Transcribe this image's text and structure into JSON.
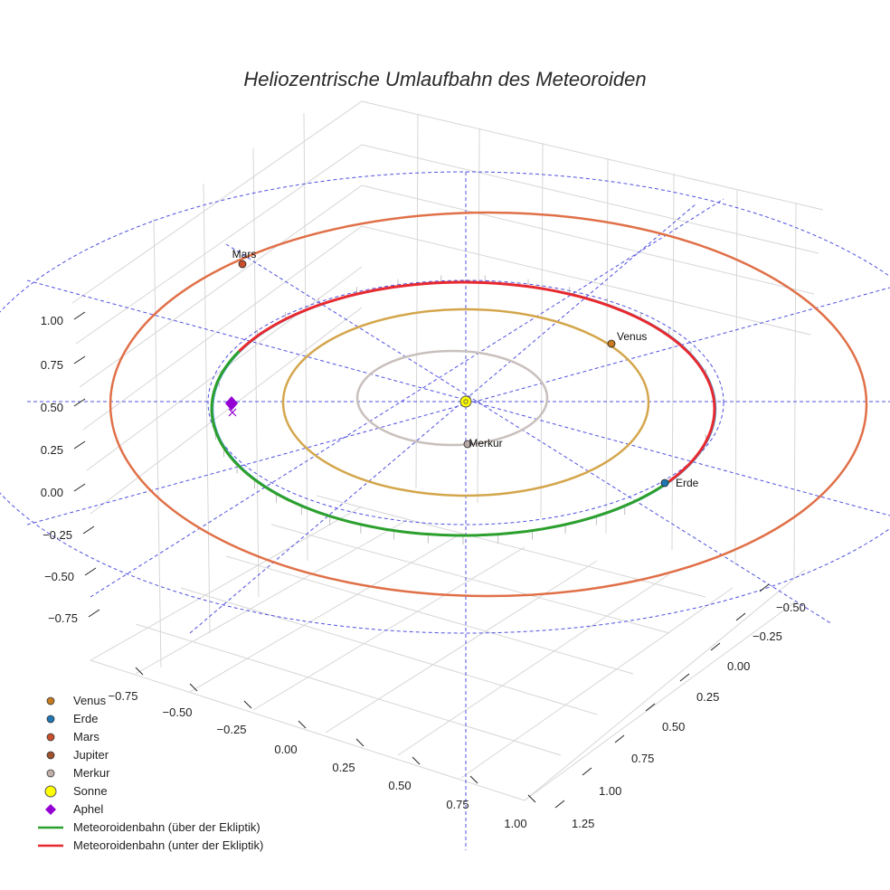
{
  "chart_data": {
    "type": "scatter3d",
    "title": "Heliozentrische Umlaufbahn des Meteoroiden",
    "axes": {
      "x_ticks": [
        "−0.75",
        "−0.50",
        "−0.25",
        "0.00",
        "0.25",
        "0.50",
        "0.75",
        "1.00"
      ],
      "y_ticks": [
        "−0.50",
        "−0.25",
        "0.00",
        "0.25",
        "0.50",
        "0.75",
        "1.00",
        "1.25"
      ],
      "z_ticks": [
        "1.00",
        "0.75",
        "0.50",
        "0.25",
        "0.00",
        "−0.25",
        "−0.50",
        "−0.75"
      ]
    },
    "bodies": [
      {
        "key": "venus",
        "label": "Venus",
        "color": "#c77b20"
      },
      {
        "key": "earth",
        "label": "Erde",
        "color": "#1f77b4"
      },
      {
        "key": "mars",
        "label": "Mars",
        "color": "#c9502c"
      },
      {
        "key": "mercury",
        "label": "Merkur",
        "color": "#b8aaa6"
      }
    ],
    "orbits": [
      {
        "name": "Merkur",
        "color": "#c9c0bd"
      },
      {
        "name": "Venus",
        "color": "#d4a64c"
      },
      {
        "name": "Erde",
        "color": "#4a9fd4"
      },
      {
        "name": "Mars",
        "color": "#e07048"
      }
    ],
    "legend": [
      {
        "label": "Venus",
        "color": "#c77b20",
        "marker": "circle"
      },
      {
        "label": "Erde",
        "color": "#1f77b4",
        "marker": "circle"
      },
      {
        "label": "Mars",
        "color": "#c9502c",
        "marker": "circle"
      },
      {
        "label": "Jupiter",
        "color": "#a0522d",
        "marker": "circle"
      },
      {
        "label": "Merkur",
        "color": "#c4b0aa",
        "marker": "circle"
      },
      {
        "label": "Sonne",
        "color": "#ffff00",
        "marker": "sun"
      },
      {
        "label": "Aphel",
        "color": "#9400d3",
        "marker": "diamond"
      },
      {
        "label": "Meteoroidenbahn (über der Ekliptik)",
        "color": "#2ca02c",
        "marker": "line"
      },
      {
        "label": "Meteoroidenbahn (unter der Ekliptik)",
        "color": "#e8292f",
        "marker": "line"
      }
    ],
    "colors": {
      "above_ecliptic": "#2ca02c",
      "below_ecliptic": "#e8292f",
      "ecliptic_guides": "#5050e0",
      "aphel": "#9400d3",
      "sun": "#ffff00"
    }
  }
}
